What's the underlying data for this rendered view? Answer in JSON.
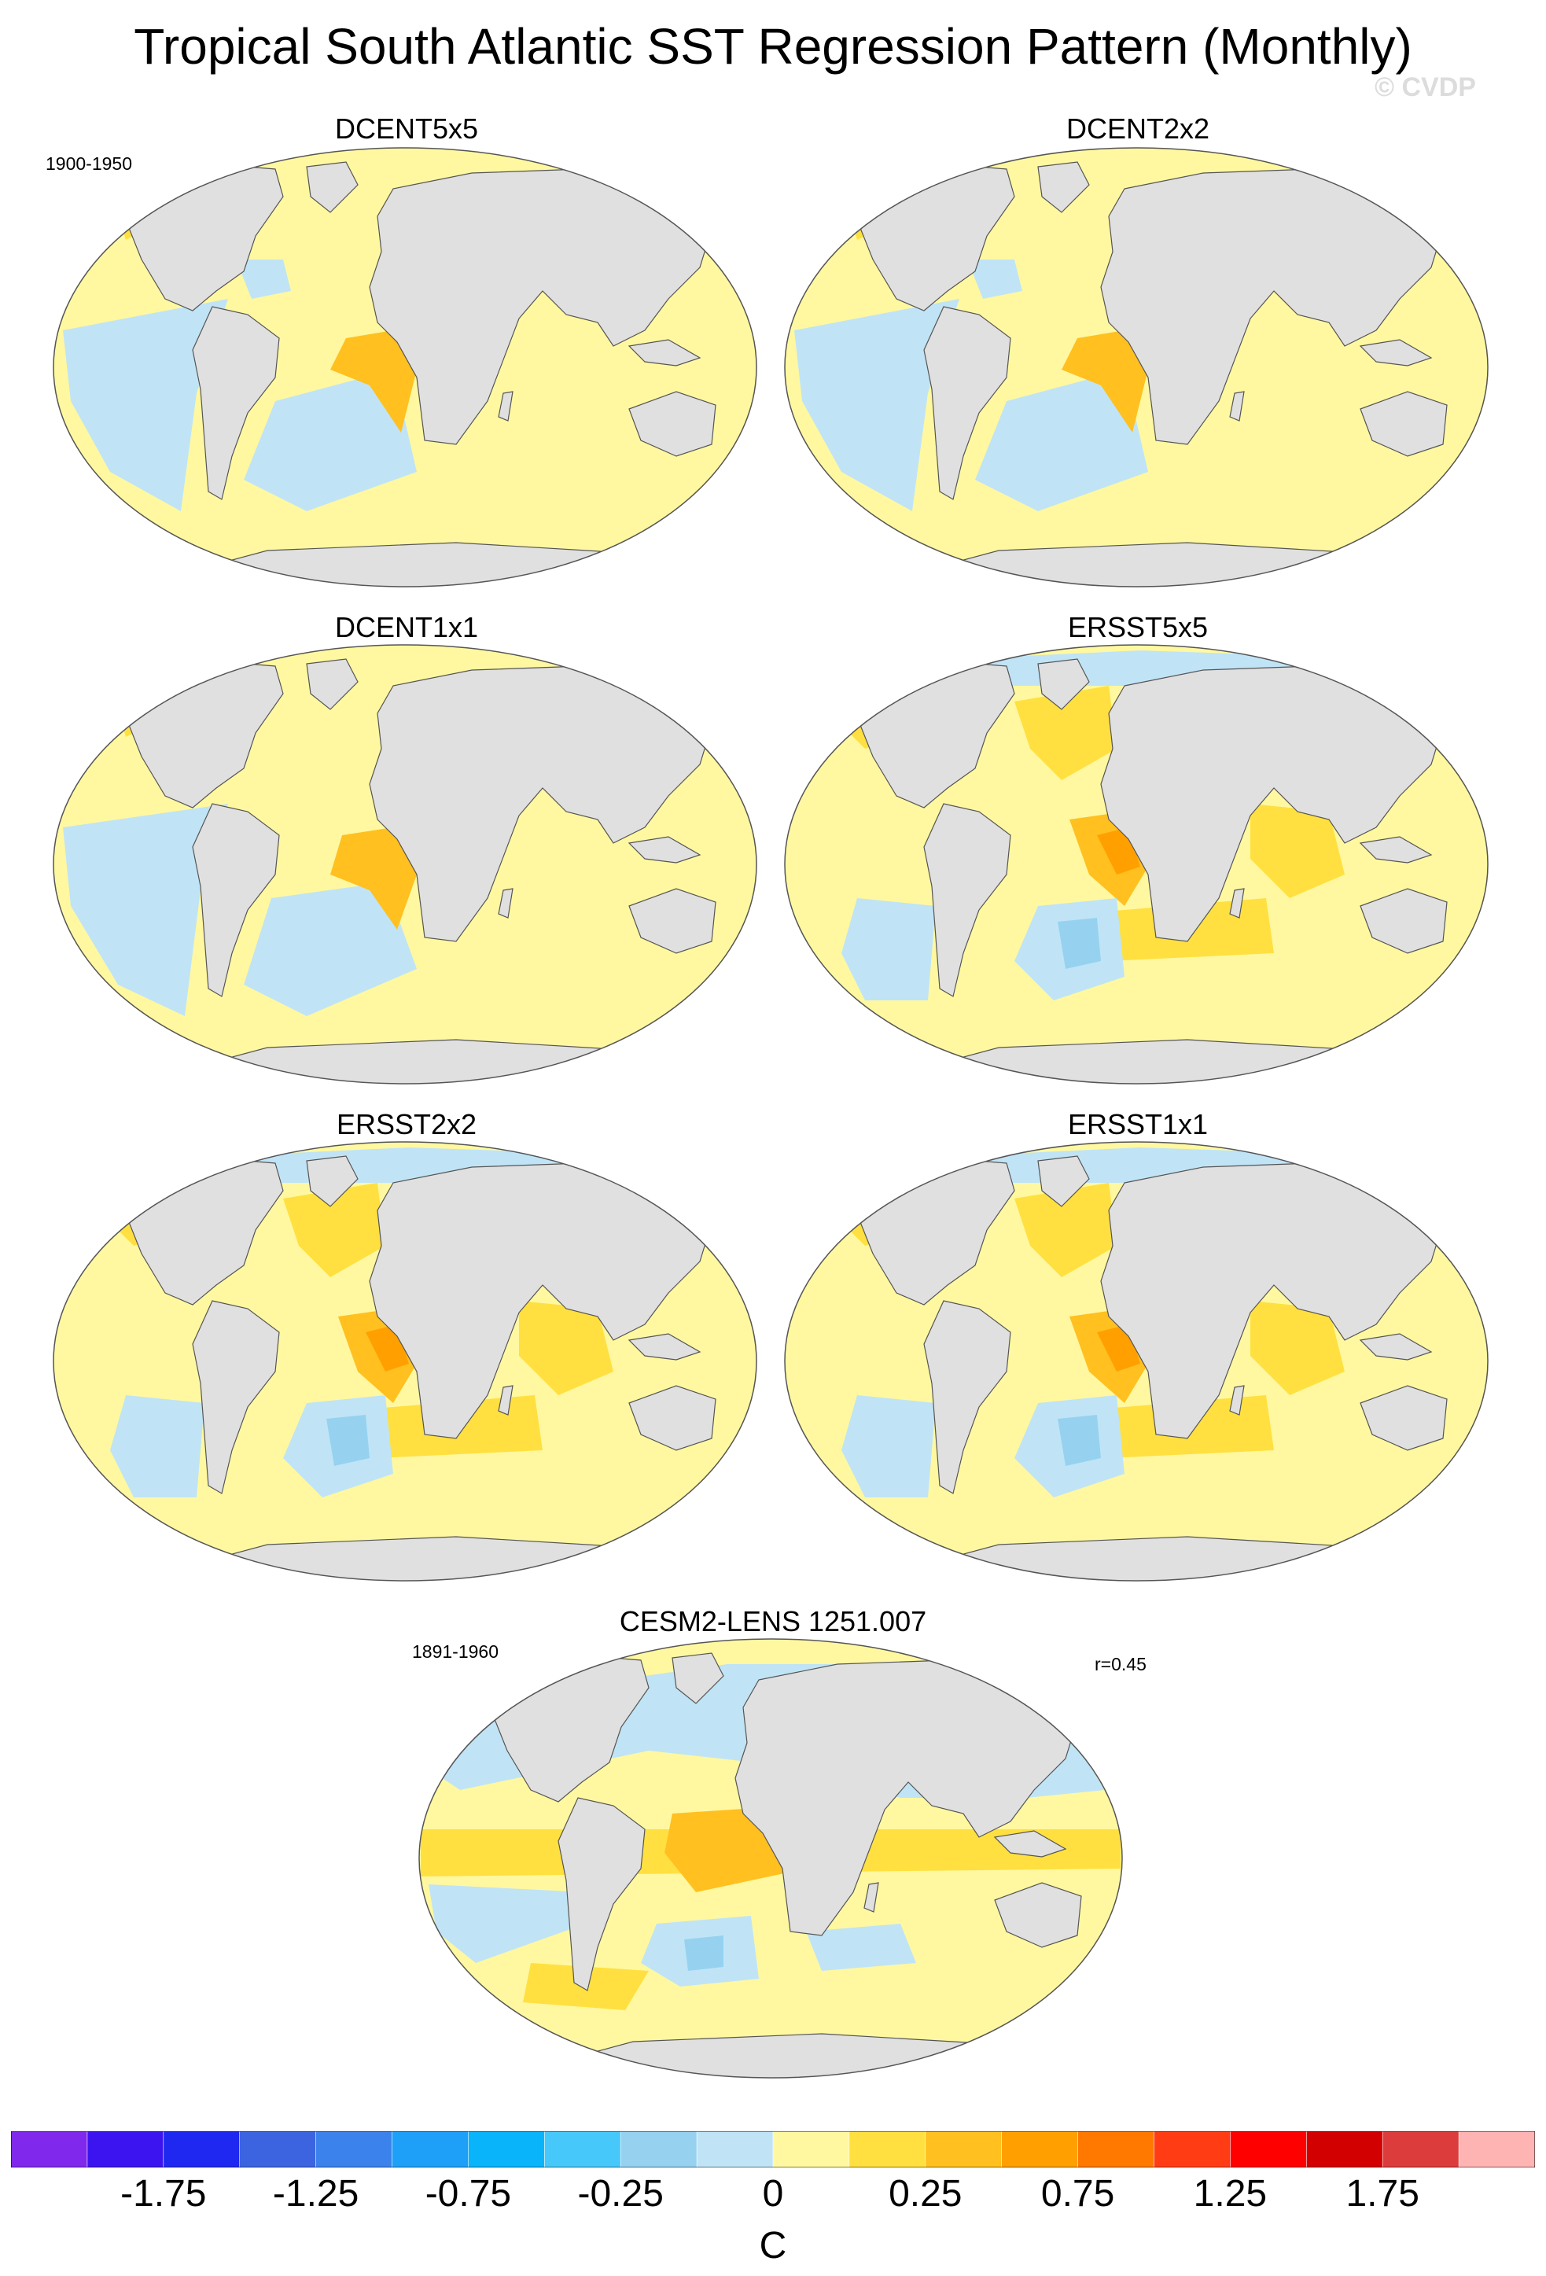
{
  "title": "Tropical South Atlantic SST Regression Pattern (Monthly)",
  "watermark": "© CVDP",
  "period_obs": "1900-1950",
  "period_model": "1891-1960",
  "pattern_correlation": "r=0.45",
  "panels": [
    {
      "title": "DCENT5x5"
    },
    {
      "title": "DCENT2x2"
    },
    {
      "title": "DCENT1x1"
    },
    {
      "title": "ERSST5x5"
    },
    {
      "title": "ERSST2x2"
    },
    {
      "title": "ERSST1x1"
    },
    {
      "title": "CESM2-LENS 1251.007"
    }
  ],
  "colorbar": {
    "units": "C",
    "colors": [
      "#8028ec",
      "#3c14f0",
      "#1e28f0",
      "#3c64e0",
      "#3c82ec",
      "#1ea0f8",
      "#0ab4fa",
      "#46c8fa",
      "#96d2f0",
      "#c0e4f6",
      "#fff8a0",
      "#ffe040",
      "#ffc020",
      "#ffa000",
      "#ff7800",
      "#ff3c14",
      "#ff0000",
      "#d20000",
      "#dc3c3c",
      "#ffb4b4"
    ],
    "labels": [
      "-1.75",
      "-1.25",
      "-0.75",
      "-0.25",
      "0",
      "0.25",
      "0.75",
      "1.25",
      "1.75"
    ]
  },
  "colors": {
    "land": "#e0e0e0",
    "ocean_base": "#fff8a0",
    "warm": "#ffe040",
    "warmer": "#ffc020",
    "hot": "#ffa000",
    "hottest": "#ff7800",
    "cool": "#c0e4f6",
    "cooler": "#96d2f0",
    "coolest": "#46c8fa"
  }
}
